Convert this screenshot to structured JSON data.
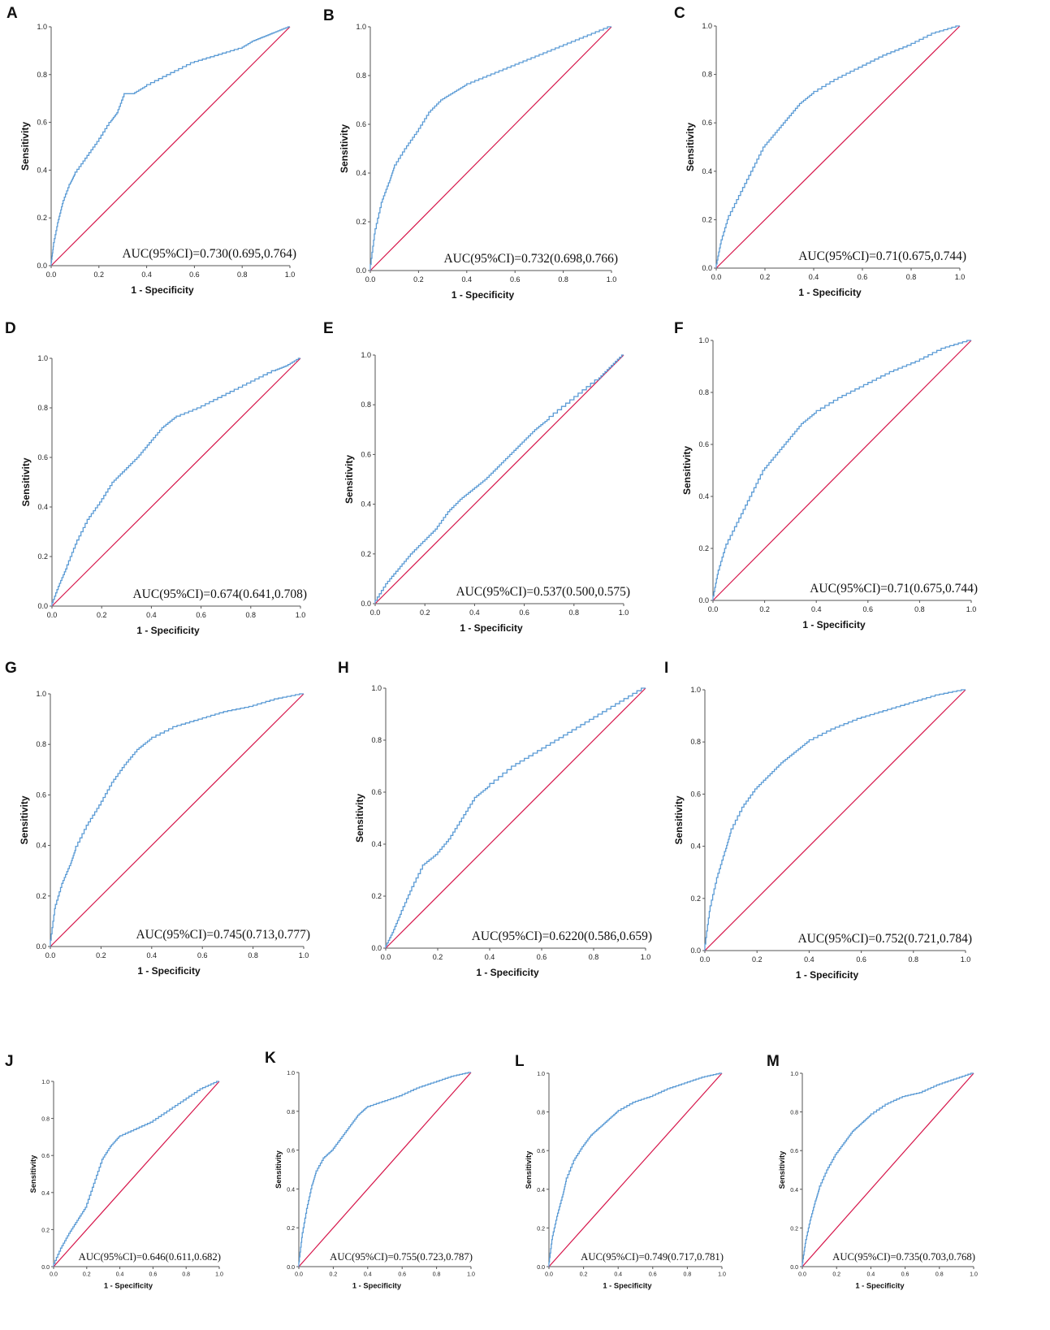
{
  "figure": {
    "x_ticks": [
      "0.0",
      "0.2",
      "0.4",
      "0.6",
      "0.8",
      "1.0"
    ],
    "y_ticks": [
      "0.0",
      "0.2",
      "0.4",
      "0.6",
      "0.8",
      "1.0"
    ]
  },
  "colors": {
    "roc": "#5b9bd5",
    "reference": "#d6154a",
    "axis": "#555555",
    "text": "#111111"
  },
  "chart_data": [
    {
      "panel": "A",
      "type": "line",
      "title": "",
      "xlabel": "1 - Specificity",
      "ylabel": "Sensitivity",
      "xlim": [
        0,
        1
      ],
      "ylim": [
        0,
        1
      ],
      "annotation": "AUC(95%CI)=0.730(0.695,0.764)",
      "auc": 0.73,
      "series": [
        {
          "name": "ROC",
          "x": [
            0,
            0.01,
            0.03,
            0.05,
            0.08,
            0.1,
            0.15,
            0.2,
            0.25,
            0.28,
            0.31,
            0.35,
            0.4,
            0.5,
            0.6,
            0.7,
            0.8,
            0.85,
            0.9,
            0.95,
            1.0
          ],
          "y": [
            0,
            0.08,
            0.18,
            0.26,
            0.34,
            0.38,
            0.45,
            0.52,
            0.6,
            0.64,
            0.72,
            0.72,
            0.75,
            0.8,
            0.85,
            0.88,
            0.91,
            0.94,
            0.96,
            0.98,
            1.0
          ]
        },
        {
          "name": "Reference",
          "x": [
            0,
            1
          ],
          "y": [
            0,
            1
          ]
        }
      ]
    },
    {
      "panel": "B",
      "type": "line",
      "title": "",
      "xlabel": "1 - Specificity",
      "ylabel": "Sensitivity",
      "xlim": [
        0,
        1
      ],
      "ylim": [
        0,
        1
      ],
      "annotation": "AUC(95%CI)=0.732(0.698,0.766)",
      "auc": 0.732,
      "series": [
        {
          "name": "ROC",
          "x": [
            0,
            0.02,
            0.05,
            0.08,
            0.1,
            0.15,
            0.2,
            0.25,
            0.3,
            0.35,
            0.4,
            0.5,
            0.6,
            0.7,
            0.8,
            0.9,
            1.0
          ],
          "y": [
            0,
            0.15,
            0.28,
            0.36,
            0.42,
            0.5,
            0.57,
            0.65,
            0.7,
            0.73,
            0.76,
            0.8,
            0.84,
            0.88,
            0.92,
            0.96,
            1.0
          ]
        },
        {
          "name": "Reference",
          "x": [
            0,
            1
          ],
          "y": [
            0,
            1
          ]
        }
      ]
    },
    {
      "panel": "C",
      "type": "line",
      "title": "",
      "xlabel": "1 - Specificity",
      "ylabel": "Sensitivity",
      "xlim": [
        0,
        1
      ],
      "ylim": [
        0,
        1
      ],
      "annotation": "AUC(95%CI)=0.71(0.675,0.744)",
      "auc": 0.71,
      "series": [
        {
          "name": "ROC",
          "x": [
            0,
            0.02,
            0.05,
            0.1,
            0.15,
            0.2,
            0.25,
            0.3,
            0.35,
            0.4,
            0.5,
            0.6,
            0.7,
            0.8,
            0.9,
            1.0
          ],
          "y": [
            0,
            0.1,
            0.2,
            0.3,
            0.4,
            0.5,
            0.56,
            0.62,
            0.68,
            0.72,
            0.78,
            0.83,
            0.88,
            0.92,
            0.97,
            1.0
          ]
        },
        {
          "name": "Reference",
          "x": [
            0,
            1
          ],
          "y": [
            0,
            1
          ]
        }
      ]
    },
    {
      "panel": "D",
      "type": "line",
      "title": "",
      "xlabel": "1 - Specificity",
      "ylabel": "Sensitivity",
      "xlim": [
        0,
        1
      ],
      "ylim": [
        0,
        1
      ],
      "annotation": "AUC(95%CI)=0.674(0.641,0.708)",
      "auc": 0.674,
      "series": [
        {
          "name": "ROC",
          "x": [
            0,
            0.03,
            0.06,
            0.1,
            0.15,
            0.2,
            0.25,
            0.3,
            0.35,
            0.4,
            0.45,
            0.5,
            0.6,
            0.7,
            0.8,
            0.9,
            0.95,
            1.0
          ],
          "y": [
            0,
            0.08,
            0.15,
            0.25,
            0.35,
            0.42,
            0.5,
            0.55,
            0.6,
            0.66,
            0.72,
            0.76,
            0.8,
            0.85,
            0.9,
            0.95,
            0.97,
            1.0
          ]
        },
        {
          "name": "Reference",
          "x": [
            0,
            1
          ],
          "y": [
            0,
            1
          ]
        }
      ]
    },
    {
      "panel": "E",
      "type": "line",
      "title": "",
      "xlabel": "1 - Specificity",
      "ylabel": "Sensitivity",
      "xlim": [
        0,
        1
      ],
      "ylim": [
        0,
        1
      ],
      "annotation": "AUC(95%CI)=0.537(0.500,0.575)",
      "auc": 0.537,
      "series": [
        {
          "name": "ROC",
          "x": [
            0,
            0.05,
            0.1,
            0.15,
            0.2,
            0.25,
            0.3,
            0.35,
            0.4,
            0.45,
            0.5,
            0.55,
            0.6,
            0.65,
            0.7,
            0.8,
            0.9,
            0.95,
            1.0
          ],
          "y": [
            0,
            0.08,
            0.14,
            0.2,
            0.25,
            0.3,
            0.37,
            0.42,
            0.46,
            0.5,
            0.55,
            0.6,
            0.65,
            0.7,
            0.74,
            0.82,
            0.9,
            0.95,
            1.0
          ]
        },
        {
          "name": "Reference",
          "x": [
            0,
            1
          ],
          "y": [
            0,
            1
          ]
        }
      ]
    },
    {
      "panel": "F",
      "type": "line",
      "title": "",
      "xlabel": "1 - Specificity",
      "ylabel": "Sensitivity",
      "xlim": [
        0,
        1
      ],
      "ylim": [
        0,
        1
      ],
      "annotation": "AUC(95%CI)=0.71(0.675,0.744)",
      "auc": 0.71,
      "series": [
        {
          "name": "ROC",
          "x": [
            0,
            0.02,
            0.05,
            0.1,
            0.15,
            0.2,
            0.25,
            0.3,
            0.35,
            0.4,
            0.5,
            0.6,
            0.7,
            0.8,
            0.9,
            1.0
          ],
          "y": [
            0,
            0.1,
            0.2,
            0.3,
            0.4,
            0.5,
            0.56,
            0.62,
            0.68,
            0.72,
            0.78,
            0.83,
            0.88,
            0.92,
            0.97,
            1.0
          ]
        },
        {
          "name": "Reference",
          "x": [
            0,
            1
          ],
          "y": [
            0,
            1
          ]
        }
      ]
    },
    {
      "panel": "G",
      "type": "line",
      "title": "",
      "xlabel": "1 - Specificity",
      "ylabel": "Sensitivity",
      "xlim": [
        0,
        1
      ],
      "ylim": [
        0,
        1
      ],
      "annotation": "AUC(95%CI)=0.745(0.713,0.777)",
      "auc": 0.745,
      "series": [
        {
          "name": "ROC",
          "x": [
            0,
            0.02,
            0.05,
            0.08,
            0.1,
            0.15,
            0.2,
            0.25,
            0.3,
            0.35,
            0.4,
            0.5,
            0.6,
            0.7,
            0.8,
            0.9,
            1.0
          ],
          "y": [
            0,
            0.15,
            0.25,
            0.32,
            0.38,
            0.48,
            0.56,
            0.65,
            0.72,
            0.78,
            0.82,
            0.87,
            0.9,
            0.93,
            0.95,
            0.98,
            1.0
          ]
        },
        {
          "name": "Reference",
          "x": [
            0,
            1
          ],
          "y": [
            0,
            1
          ]
        }
      ]
    },
    {
      "panel": "H",
      "type": "line",
      "title": "",
      "xlabel": "1 - Specificity",
      "ylabel": "Sensitivity",
      "xlim": [
        0,
        1
      ],
      "ylim": [
        0,
        1
      ],
      "annotation": "AUC(95%CI)=0.6220(0.586,0.659)",
      "auc": 0.622,
      "series": [
        {
          "name": "ROC",
          "x": [
            0,
            0.03,
            0.06,
            0.1,
            0.15,
            0.2,
            0.25,
            0.3,
            0.35,
            0.4,
            0.5,
            0.6,
            0.7,
            0.8,
            0.9,
            1.0
          ],
          "y": [
            0,
            0.06,
            0.13,
            0.22,
            0.32,
            0.36,
            0.42,
            0.5,
            0.58,
            0.62,
            0.7,
            0.76,
            0.82,
            0.88,
            0.94,
            1.0
          ]
        },
        {
          "name": "Reference",
          "x": [
            0,
            1
          ],
          "y": [
            0,
            1
          ]
        }
      ]
    },
    {
      "panel": "I",
      "type": "line",
      "title": "",
      "xlabel": "1 - Specificity",
      "ylabel": "Sensitivity",
      "xlim": [
        0,
        1
      ],
      "ylim": [
        0,
        1
      ],
      "annotation": "AUC(95%CI)=0.752(0.721,0.784)",
      "auc": 0.752,
      "series": [
        {
          "name": "ROC",
          "x": [
            0,
            0.02,
            0.05,
            0.08,
            0.1,
            0.15,
            0.2,
            0.25,
            0.3,
            0.35,
            0.4,
            0.5,
            0.6,
            0.7,
            0.8,
            0.9,
            1.0
          ],
          "y": [
            0,
            0.15,
            0.28,
            0.38,
            0.45,
            0.55,
            0.62,
            0.67,
            0.72,
            0.76,
            0.8,
            0.85,
            0.89,
            0.92,
            0.95,
            0.98,
            1.0
          ]
        },
        {
          "name": "Reference",
          "x": [
            0,
            1
          ],
          "y": [
            0,
            1
          ]
        }
      ]
    },
    {
      "panel": "J",
      "type": "line",
      "title": "",
      "xlabel": "1 - Specificity",
      "ylabel": "Sensitivity",
      "xlim": [
        0,
        1
      ],
      "ylim": [
        0,
        1
      ],
      "annotation": "AUC(95%CI)=0.646(0.611,0.682)",
      "auc": 0.646,
      "series": [
        {
          "name": "ROC",
          "x": [
            0,
            0.05,
            0.1,
            0.15,
            0.2,
            0.25,
            0.3,
            0.35,
            0.4,
            0.5,
            0.6,
            0.7,
            0.8,
            0.9,
            1.0
          ],
          "y": [
            0,
            0.1,
            0.18,
            0.25,
            0.32,
            0.45,
            0.58,
            0.65,
            0.7,
            0.74,
            0.78,
            0.84,
            0.9,
            0.96,
            1.0
          ]
        },
        {
          "name": "Reference",
          "x": [
            0,
            1
          ],
          "y": [
            0,
            1
          ]
        }
      ]
    },
    {
      "panel": "K",
      "type": "line",
      "title": "",
      "xlabel": "1 - Specificity",
      "ylabel": "Sensitivity",
      "xlim": [
        0,
        1
      ],
      "ylim": [
        0,
        1
      ],
      "annotation": "AUC(95%CI)=0.755(0.723,0.787)",
      "auc": 0.755,
      "series": [
        {
          "name": "ROC",
          "x": [
            0,
            0.02,
            0.05,
            0.08,
            0.1,
            0.15,
            0.2,
            0.25,
            0.3,
            0.35,
            0.4,
            0.5,
            0.6,
            0.7,
            0.8,
            0.9,
            1.0
          ],
          "y": [
            0,
            0.15,
            0.3,
            0.42,
            0.48,
            0.56,
            0.6,
            0.66,
            0.72,
            0.78,
            0.82,
            0.85,
            0.88,
            0.92,
            0.95,
            0.98,
            1.0
          ]
        },
        {
          "name": "Reference",
          "x": [
            0,
            1
          ],
          "y": [
            0,
            1
          ]
        }
      ]
    },
    {
      "panel": "L",
      "type": "line",
      "title": "",
      "xlabel": "1 - Specificity",
      "ylabel": "Sensitivity",
      "xlim": [
        0,
        1
      ],
      "ylim": [
        0,
        1
      ],
      "annotation": "AUC(95%CI)=0.749(0.717,0.781)",
      "auc": 0.749,
      "series": [
        {
          "name": "ROC",
          "x": [
            0,
            0.02,
            0.05,
            0.08,
            0.1,
            0.15,
            0.2,
            0.25,
            0.3,
            0.35,
            0.4,
            0.5,
            0.6,
            0.7,
            0.8,
            0.9,
            1.0
          ],
          "y": [
            0,
            0.14,
            0.26,
            0.36,
            0.44,
            0.55,
            0.62,
            0.68,
            0.72,
            0.76,
            0.8,
            0.85,
            0.88,
            0.92,
            0.95,
            0.98,
            1.0
          ]
        },
        {
          "name": "Reference",
          "x": [
            0,
            1
          ],
          "y": [
            0,
            1
          ]
        }
      ]
    },
    {
      "panel": "M",
      "type": "line",
      "title": "",
      "xlabel": "1 - Specificity",
      "ylabel": "Sensitivity",
      "xlim": [
        0,
        1
      ],
      "ylim": [
        0,
        1
      ],
      "annotation": "AUC(95%CI)=0.735(0.703,0.768)",
      "auc": 0.735,
      "series": [
        {
          "name": "ROC",
          "x": [
            0,
            0.02,
            0.05,
            0.08,
            0.1,
            0.15,
            0.2,
            0.25,
            0.3,
            0.35,
            0.4,
            0.5,
            0.6,
            0.7,
            0.8,
            0.9,
            1.0
          ],
          "y": [
            0,
            0.12,
            0.24,
            0.34,
            0.4,
            0.5,
            0.58,
            0.64,
            0.7,
            0.74,
            0.78,
            0.84,
            0.88,
            0.9,
            0.94,
            0.97,
            1.0
          ]
        },
        {
          "name": "Reference",
          "x": [
            0,
            1
          ],
          "y": [
            0,
            1
          ]
        }
      ]
    }
  ]
}
